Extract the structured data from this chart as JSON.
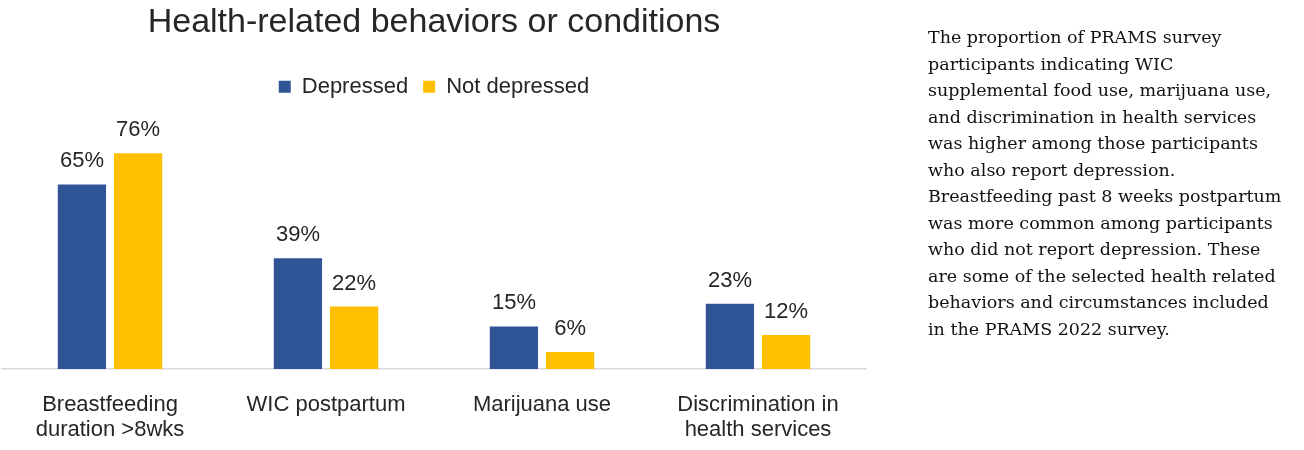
{
  "chart_data": {
    "type": "bar",
    "title": "Health-related behaviors or conditions",
    "categories": [
      "Breastfeeding duration >8wks",
      "WIC postpartum",
      "Marijuana use",
      "Discrimination in health services"
    ],
    "series": [
      {
        "name": "Depressed",
        "color": "#2f5597",
        "values": [
          65,
          39,
          15,
          23
        ],
        "value_labels": [
          "65%",
          "39%",
          "15%",
          "23%"
        ]
      },
      {
        "name": "Not depressed",
        "color": "#ffc000",
        "values": [
          76,
          22,
          6,
          12
        ],
        "value_labels": [
          "76%",
          "22%",
          "6%",
          "12%"
        ]
      }
    ],
    "legend": "top",
    "tick_labels": "x",
    "annotations": [
      "The proportion of PRAMS survey participants indicating WIC supplemental food use, marijuana use, and discrimination in health services was higher among those participants who also report depression. Breastfeeding past 8 weeks postpartum was more common among participants who did not report depression. These are some of the selected health related behaviors and circumstances included in the PRAMS 2022 survey."
    ]
  }
}
